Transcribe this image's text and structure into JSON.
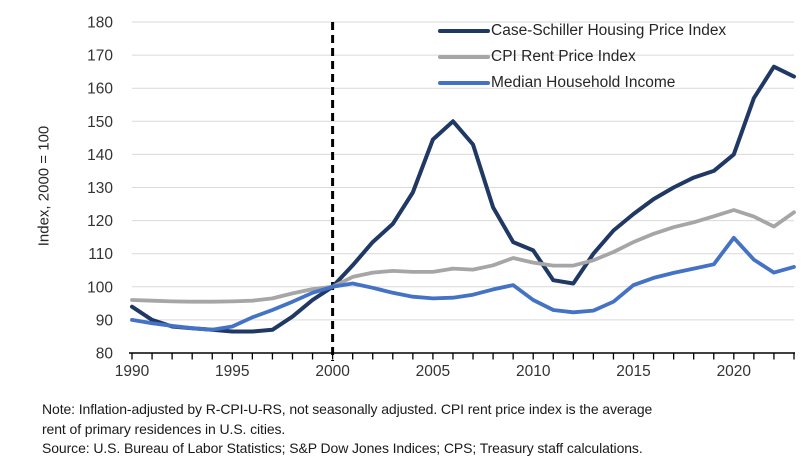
{
  "chart_data": {
    "type": "line",
    "title": "",
    "xlabel": "",
    "ylabel": "Index, 2000 = 100",
    "ylim": [
      80,
      180
    ],
    "y_tick_step": 10,
    "xlim": [
      1990,
      2023
    ],
    "x_labeled_ticks": [
      1990,
      1995,
      2000,
      2005,
      2010,
      2015,
      2020
    ],
    "grid": "horizontal",
    "legend_position": "top-right-inside",
    "reference_line": {
      "x": 2000,
      "style": "dashed",
      "color": "#000000"
    },
    "years": [
      1990,
      1991,
      1992,
      1993,
      1994,
      1995,
      1996,
      1997,
      1998,
      1999,
      2000,
      2001,
      2002,
      2003,
      2004,
      2005,
      2006,
      2007,
      2008,
      2009,
      2010,
      2011,
      2012,
      2013,
      2014,
      2015,
      2016,
      2017,
      2018,
      2019,
      2020,
      2021,
      2022,
      2023
    ],
    "series": [
      {
        "name": "Case-Schiller Housing Price Index",
        "color": "#1F3864",
        "values": [
          94,
          90,
          88,
          87.5,
          87,
          86.5,
          86.5,
          87,
          91,
          96,
          100,
          106.5,
          113.5,
          119,
          128.5,
          144.5,
          150,
          143,
          124,
          113.5,
          111,
          102,
          101,
          110,
          117,
          122,
          126.5,
          130,
          133,
          135,
          140,
          157,
          166.5,
          163.5
        ]
      },
      {
        "name": "CPI Rent Price Index",
        "color": "#A6A6A6",
        "values": [
          96,
          95.8,
          95.6,
          95.5,
          95.5,
          95.6,
          95.8,
          96.5,
          98,
          99.3,
          100,
          103,
          104.3,
          104.8,
          104.5,
          104.5,
          105.5,
          105.2,
          106.5,
          108.7,
          107.3,
          106.4,
          106.4,
          108,
          110.5,
          113.5,
          116,
          118,
          119.5,
          121.3,
          123.2,
          121.2,
          118.2,
          122.5
        ]
      },
      {
        "name": "Median Household Income",
        "color": "#4472C4",
        "values": [
          90,
          89,
          88.2,
          87.5,
          87,
          88,
          90.8,
          93,
          95.5,
          98.2,
          100,
          101,
          99.7,
          98.2,
          97,
          96.5,
          96.7,
          97.6,
          99.2,
          100.5,
          96,
          93,
          92.3,
          92.8,
          95.5,
          100.5,
          102.7,
          104.2,
          105.5,
          106.8,
          114.8,
          108.2,
          104.3,
          106
        ]
      }
    ],
    "colors": {
      "gridline": "#D9D9D9",
      "axis": "#000000",
      "tick_text": "#333333"
    }
  },
  "notes": {
    "note_line1": "Note: Inflation-adjusted by R-CPI-U-RS, not seasonally adjusted. CPI rent price index is the average",
    "note_line2": "rent of primary residences in U.S. cities.",
    "source_line": "Source: U.S. Bureau of Labor Statistics; S&P Dow Jones Indices; CPS; Treasury staff calculations."
  }
}
